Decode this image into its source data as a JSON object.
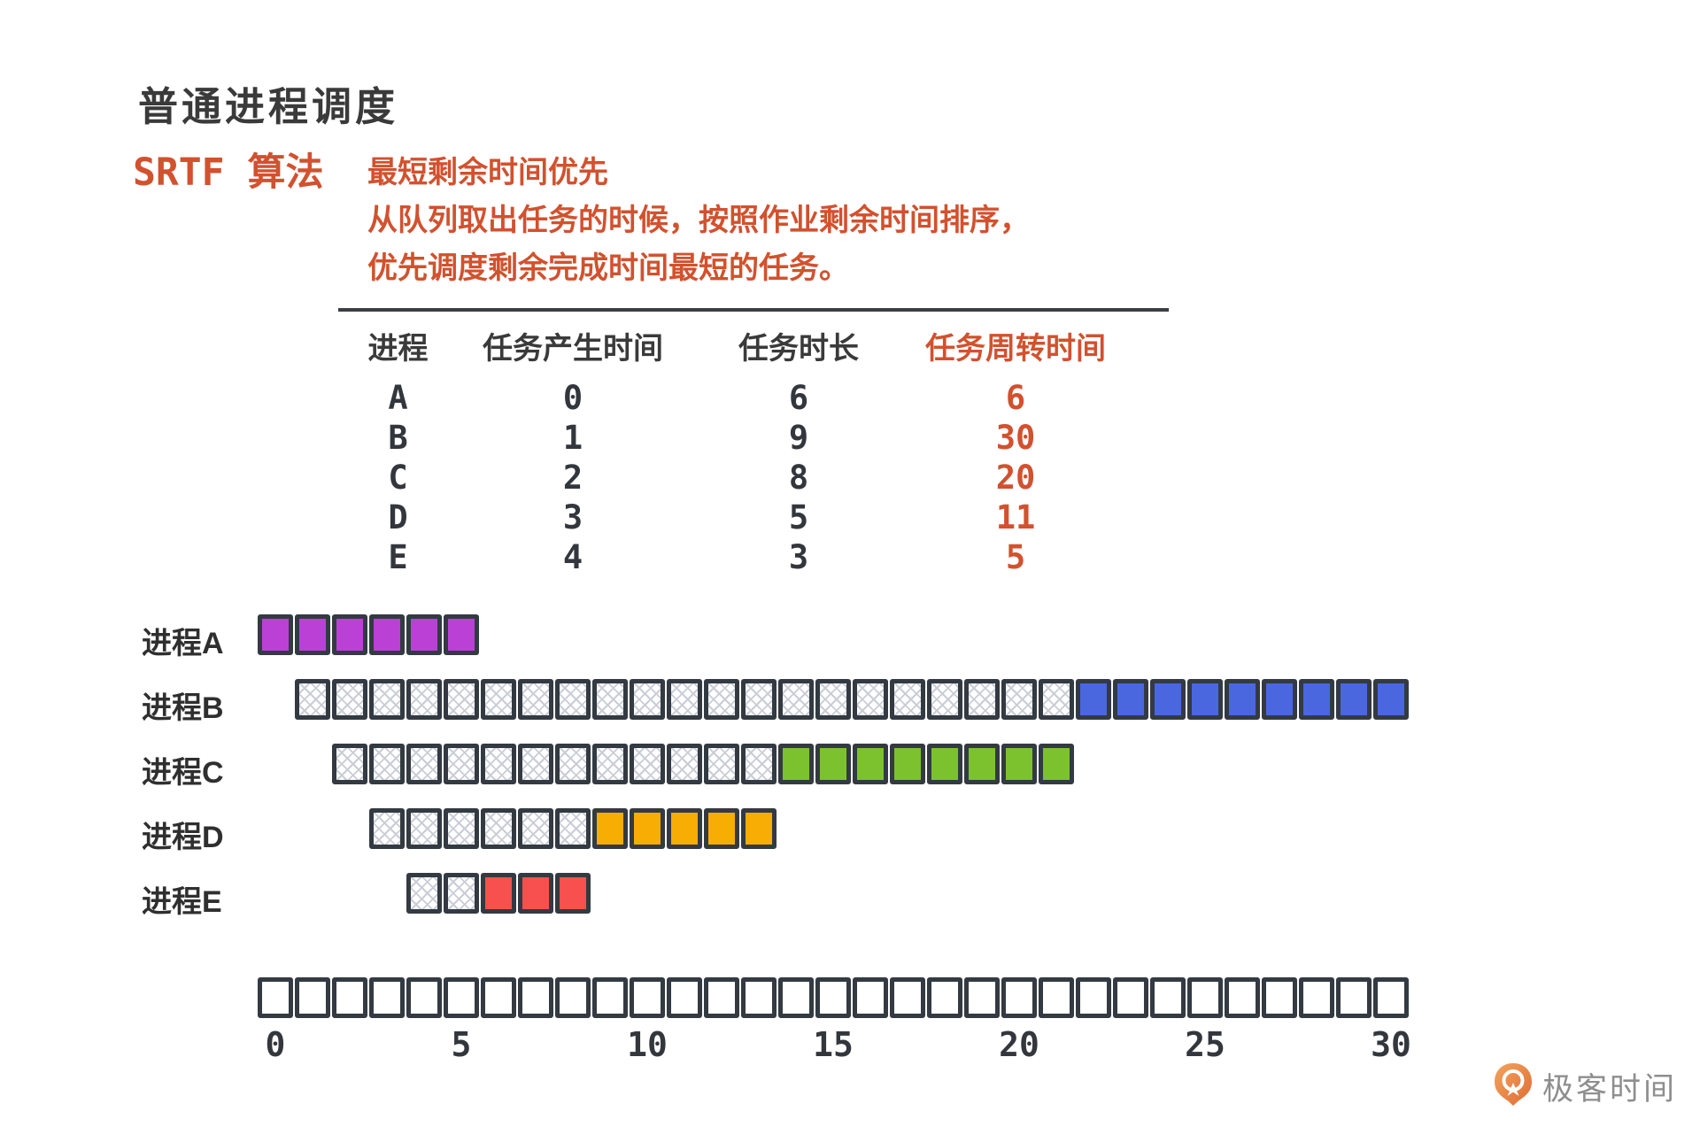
{
  "page": {
    "title": "普通进程调度"
  },
  "algorithm": {
    "name": "SRTF 算法",
    "description_lines": [
      "最短剩余时间优先",
      "从队列取出任务的时候，按照作业剩余时间排序，",
      "优先调度剩余完成时间最短的任务。"
    ]
  },
  "table": {
    "headers": [
      "进程",
      "任务产生时间",
      "任务时长",
      "任务周转时间"
    ],
    "rows": [
      {
        "process": "A",
        "arrival": "0",
        "duration": "6",
        "turnaround": "6"
      },
      {
        "process": "B",
        "arrival": "1",
        "duration": "9",
        "turnaround": "30"
      },
      {
        "process": "C",
        "arrival": "2",
        "duration": "8",
        "turnaround": "20"
      },
      {
        "process": "D",
        "arrival": "3",
        "duration": "5",
        "turnaround": "11"
      },
      {
        "process": "E",
        "arrival": "4",
        "duration": "3",
        "turnaround": "5"
      }
    ]
  },
  "gantt": {
    "rows": [
      {
        "label": "进程A",
        "arrival_slot": 0,
        "wait_slots": 0,
        "run_slots": 6,
        "run_color": "#bb41d6"
      },
      {
        "label": "进程B",
        "arrival_slot": 1,
        "wait_slots": 21,
        "run_slots": 9,
        "run_color": "#4a67e0"
      },
      {
        "label": "进程C",
        "arrival_slot": 2,
        "wait_slots": 12,
        "run_slots": 8,
        "run_color": "#7cc22f"
      },
      {
        "label": "进程D",
        "arrival_slot": 3,
        "wait_slots": 6,
        "run_slots": 5,
        "run_color": "#f8ad05"
      },
      {
        "label": "进程E",
        "arrival_slot": 4,
        "wait_slots": 2,
        "run_slots": 3,
        "run_color": "#f8504e"
      }
    ],
    "timeline": {
      "total_slots": 31,
      "tick_interval": 5,
      "tick_labels": [
        "0",
        "5",
        "10",
        "15",
        "20",
        "25",
        "30"
      ]
    }
  },
  "branding": {
    "logo_text": "极客时间"
  },
  "colors": {
    "accent_orange": "#d2512e",
    "dark_text": "#3a3a3a",
    "block_border": "#333a42",
    "hatch_line": "#c9cdd6",
    "run_a_purple": "#bb41d6",
    "run_b_blue": "#4a67e0",
    "run_c_green": "#7cc22f",
    "run_d_orange": "#f8ad05",
    "run_e_red": "#f8504e"
  }
}
